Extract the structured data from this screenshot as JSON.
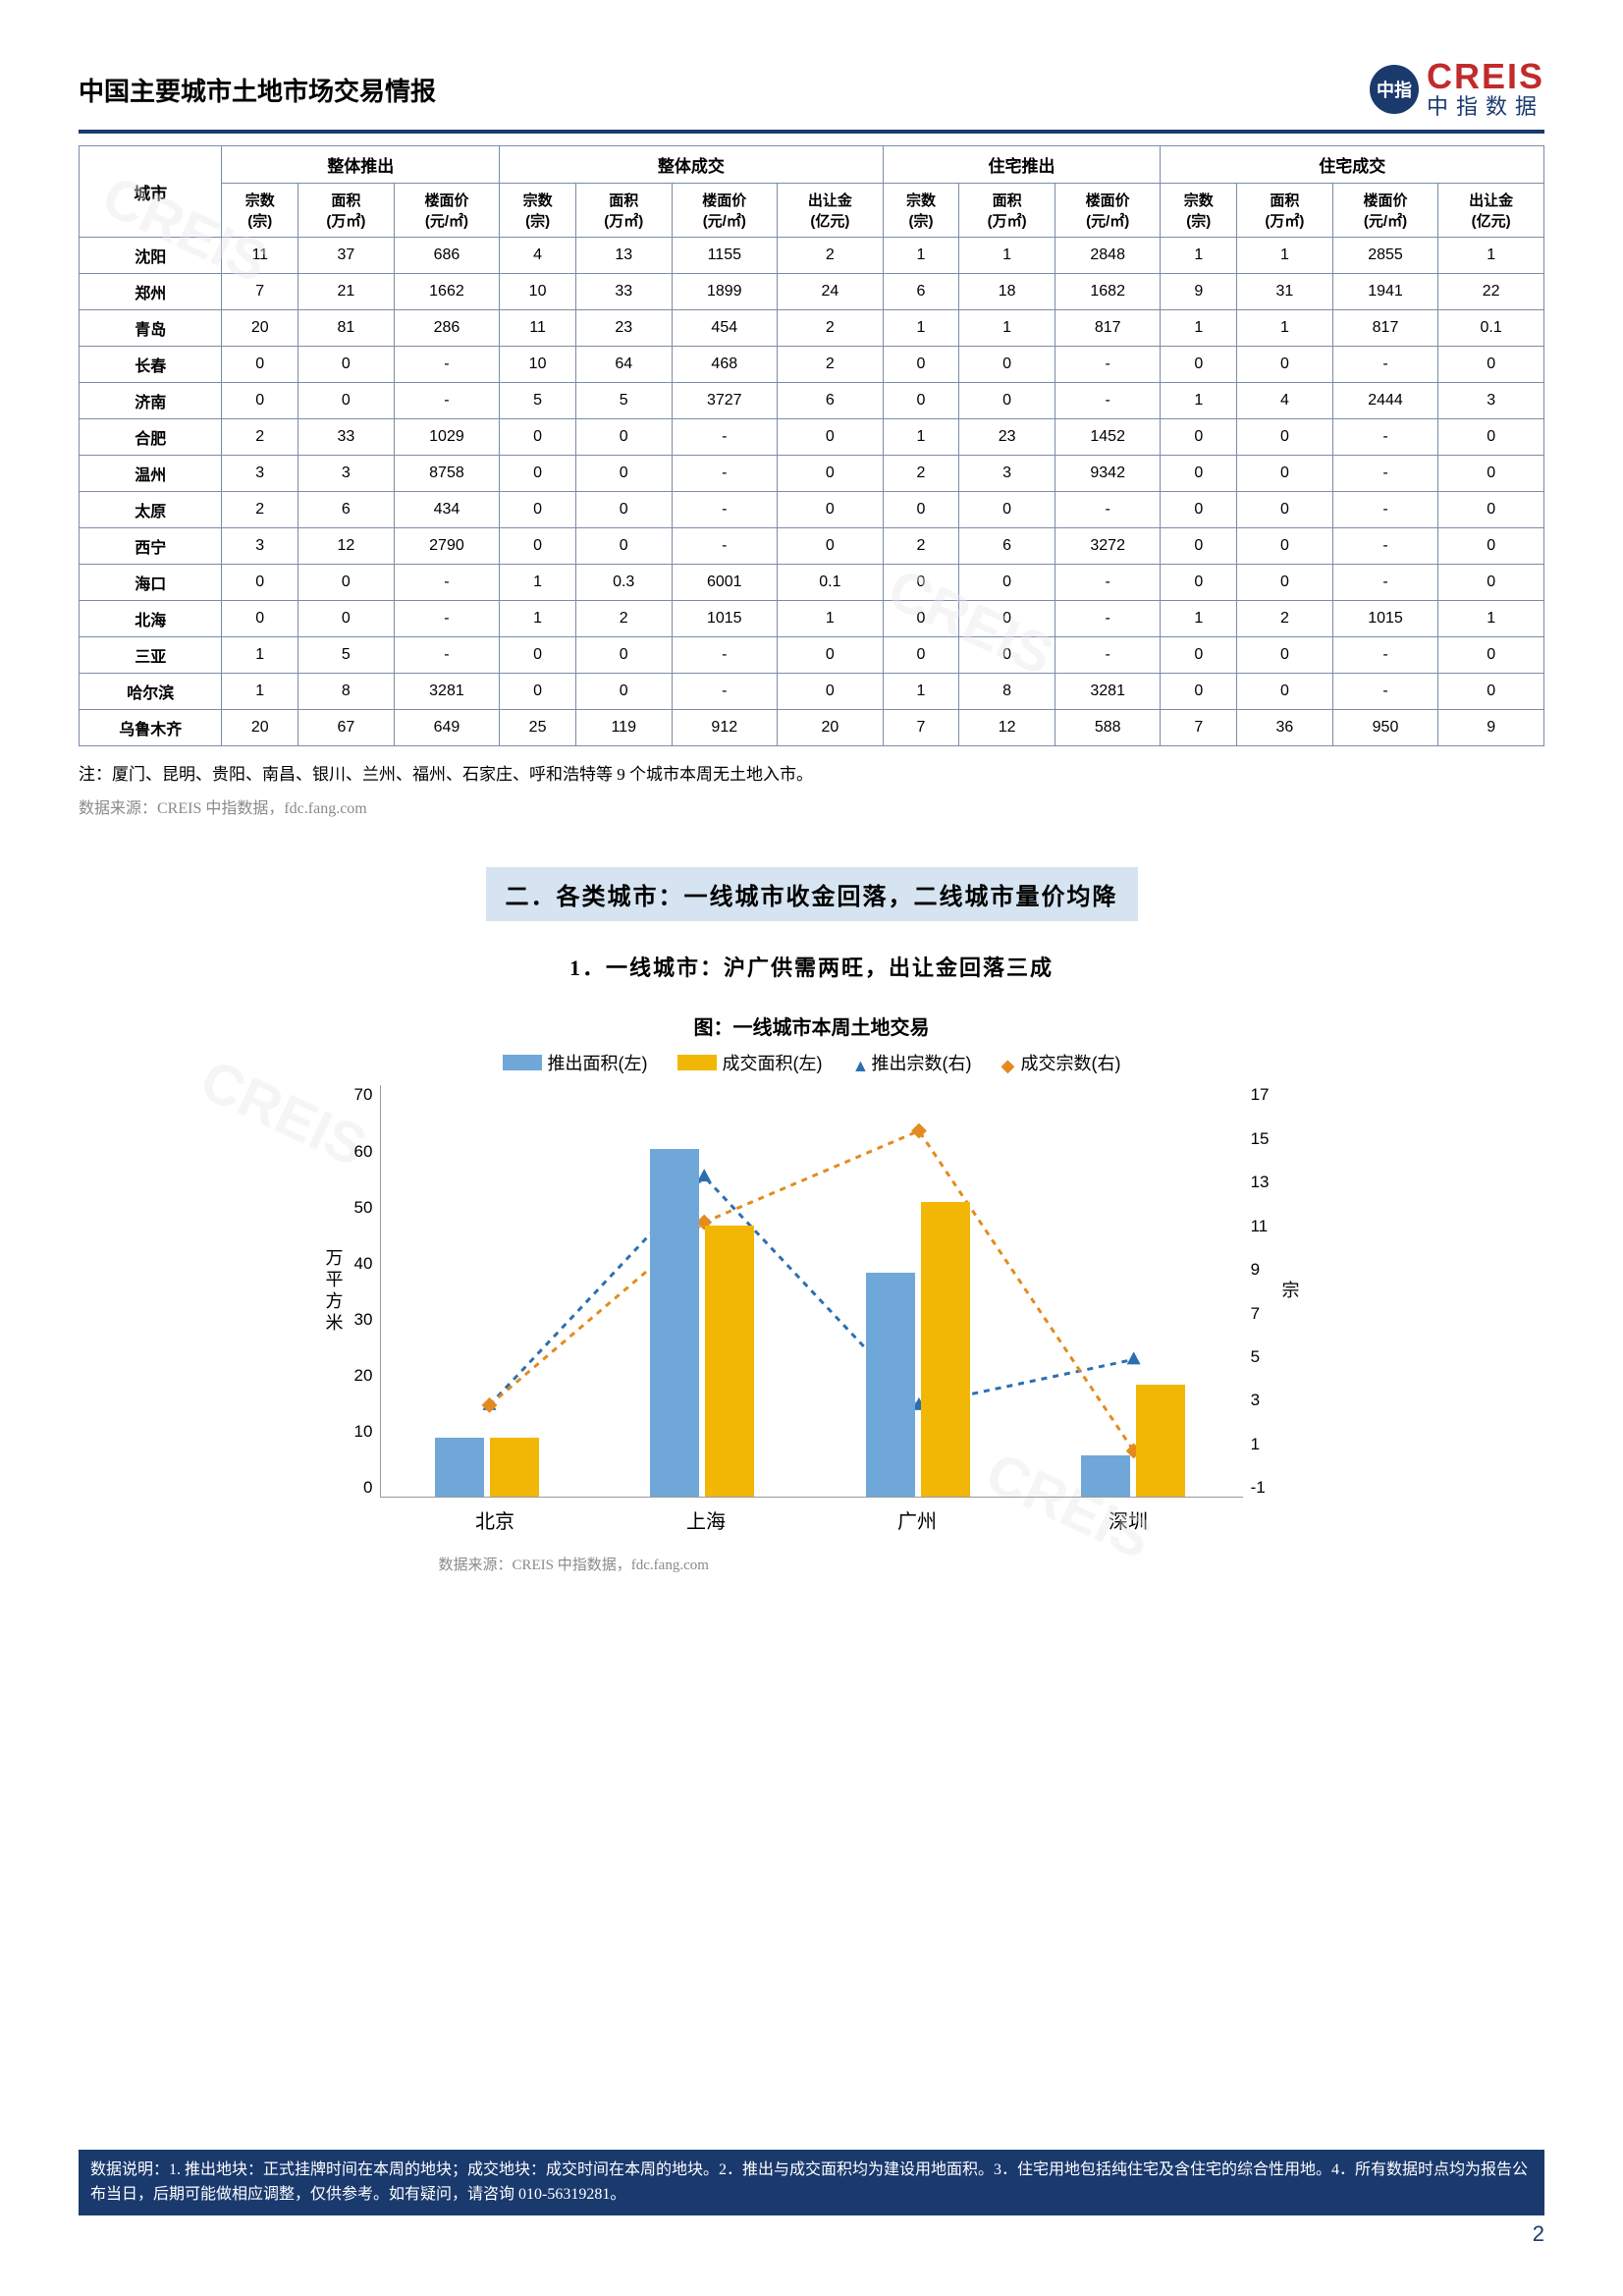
{
  "header": {
    "title": "中国主要城市土地市场交易情报",
    "logo_main": "CREIS",
    "logo_sub": "中指数据",
    "logo_badge": "中指"
  },
  "table": {
    "group_headers": [
      "整体推出",
      "整体成交",
      "住宅推出",
      "住宅成交"
    ],
    "city_col": "城市",
    "sub_headers": {
      "c1": "宗数\n(宗)",
      "c2": "面积\n(万㎡)",
      "c3": "楼面价\n(元/㎡)",
      "c4": "宗数\n(宗)",
      "c5": "面积\n(万㎡)",
      "c6": "楼面价\n(元/㎡)",
      "c7": "出让金\n(亿元)",
      "c8": "宗数\n(宗)",
      "c9": "面积\n(万㎡)",
      "c10": "楼面价\n(元/㎡)",
      "c11": "宗数\n(宗)",
      "c12": "面积\n(万㎡)",
      "c13": "楼面价\n(元/㎡)",
      "c14": "出让金\n(亿元)"
    },
    "rows": [
      {
        "city": "沈阳",
        "v": [
          "11",
          "37",
          "686",
          "4",
          "13",
          "1155",
          "2",
          "1",
          "1",
          "2848",
          "1",
          "1",
          "2855",
          "1"
        ]
      },
      {
        "city": "郑州",
        "v": [
          "7",
          "21",
          "1662",
          "10",
          "33",
          "1899",
          "24",
          "6",
          "18",
          "1682",
          "9",
          "31",
          "1941",
          "22"
        ]
      },
      {
        "city": "青岛",
        "v": [
          "20",
          "81",
          "286",
          "11",
          "23",
          "454",
          "2",
          "1",
          "1",
          "817",
          "1",
          "1",
          "817",
          "0.1"
        ]
      },
      {
        "city": "长春",
        "v": [
          "0",
          "0",
          "-",
          "10",
          "64",
          "468",
          "2",
          "0",
          "0",
          "-",
          "0",
          "0",
          "-",
          "0"
        ]
      },
      {
        "city": "济南",
        "v": [
          "0",
          "0",
          "-",
          "5",
          "5",
          "3727",
          "6",
          "0",
          "0",
          "-",
          "1",
          "4",
          "2444",
          "3"
        ]
      },
      {
        "city": "合肥",
        "v": [
          "2",
          "33",
          "1029",
          "0",
          "0",
          "-",
          "0",
          "1",
          "23",
          "1452",
          "0",
          "0",
          "-",
          "0"
        ]
      },
      {
        "city": "温州",
        "v": [
          "3",
          "3",
          "8758",
          "0",
          "0",
          "-",
          "0",
          "2",
          "3",
          "9342",
          "0",
          "0",
          "-",
          "0"
        ]
      },
      {
        "city": "太原",
        "v": [
          "2",
          "6",
          "434",
          "0",
          "0",
          "-",
          "0",
          "0",
          "0",
          "-",
          "0",
          "0",
          "-",
          "0"
        ]
      },
      {
        "city": "西宁",
        "v": [
          "3",
          "12",
          "2790",
          "0",
          "0",
          "-",
          "0",
          "2",
          "6",
          "3272",
          "0",
          "0",
          "-",
          "0"
        ]
      },
      {
        "city": "海口",
        "v": [
          "0",
          "0",
          "-",
          "1",
          "0.3",
          "6001",
          "0.1",
          "0",
          "0",
          "-",
          "0",
          "0",
          "-",
          "0"
        ]
      },
      {
        "city": "北海",
        "v": [
          "0",
          "0",
          "-",
          "1",
          "2",
          "1015",
          "1",
          "0",
          "0",
          "-",
          "1",
          "2",
          "1015",
          "1"
        ]
      },
      {
        "city": "三亚",
        "v": [
          "1",
          "5",
          "-",
          "0",
          "0",
          "-",
          "0",
          "0",
          "0",
          "-",
          "0",
          "0",
          "-",
          "0"
        ]
      },
      {
        "city": "哈尔滨",
        "v": [
          "1",
          "8",
          "3281",
          "0",
          "0",
          "-",
          "0",
          "1",
          "8",
          "3281",
          "0",
          "0",
          "-",
          "0"
        ]
      },
      {
        "city": "乌鲁木齐",
        "v": [
          "20",
          "67",
          "649",
          "25",
          "119",
          "912",
          "20",
          "7",
          "12",
          "588",
          "7",
          "36",
          "950",
          "9"
        ]
      }
    ]
  },
  "note": "注：厦门、昆明、贵阳、南昌、银川、兰州、福州、石家庄、呼和浩特等 9 个城市本周无土地入市。",
  "source": "数据来源：CREIS 中指数据，fdc.fang.com",
  "section_title": "二．各类城市：一线城市收金回落，二线城市量价均降",
  "sub_title": "1．一线城市：沪广供需两旺，出让金回落三成",
  "chart": {
    "title": "图：一线城市本周土地交易",
    "legend": {
      "bar1": "推出面积(左)",
      "bar2": "成交面积(左)",
      "line1": "推出宗数(右)",
      "line2": "成交宗数(右)"
    },
    "colors": {
      "bar1": "#6fa8d8",
      "bar2": "#f2b705",
      "line1": "#2b6fb0",
      "line2": "#e38b1e",
      "grid": "#e0e0e0",
      "bg": "#ffffff"
    },
    "y_left": {
      "label": "万平方米",
      "min": 0,
      "max": 70,
      "step": 10
    },
    "y_right": {
      "label": "宗",
      "min": -1,
      "max": 17,
      "step": 2
    },
    "categories": [
      "北京",
      "上海",
      "广州",
      "深圳"
    ],
    "bar1_values": [
      10,
      59,
      38,
      7
    ],
    "bar2_values": [
      10,
      46,
      50,
      19
    ],
    "line1_values": [
      3,
      13,
      3,
      5
    ],
    "line2_values": [
      3,
      11,
      15,
      1
    ],
    "source": "数据来源：CREIS 中指数据，fdc.fang.com"
  },
  "footer": {
    "text": "数据说明：1. 推出地块：正式挂牌时间在本周的地块；成交地块：成交时间在本周的地块。2．推出与成交面积均为建设用地面积。3．住宅用地包括纯住宅及含住宅的综合性用地。4．所有数据时点均为报告公布当日，后期可能做相应调整，仅供参考。如有疑问，请咨询 010-56319281。",
    "page": "2"
  },
  "watermark_text": "CREIS"
}
